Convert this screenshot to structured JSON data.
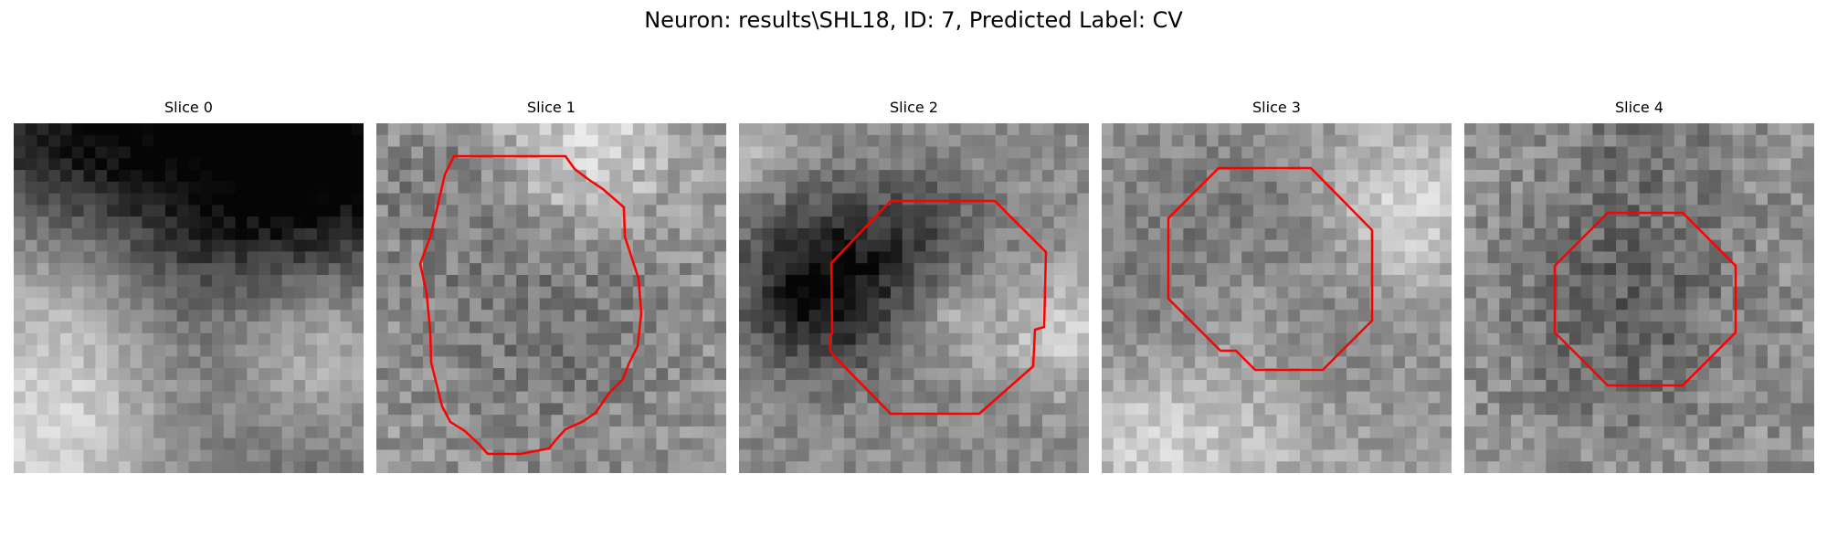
{
  "title": "Neuron: results\\SHL18, ID: 7, Predicted Label: CV",
  "contour_color": "#ff0000",
  "slices": [
    {
      "label": "Slice 0",
      "has_contour": false,
      "tone": {
        "base": 0.42,
        "noise": 0.16,
        "blobs": [
          [
            0.55,
            0.02,
            0.4,
            -0.4
          ],
          [
            0.9,
            0.12,
            0.25,
            -0.25
          ],
          [
            0.12,
            0.12,
            0.22,
            -0.18
          ],
          [
            0.12,
            0.4,
            0.22,
            0.3
          ],
          [
            0.1,
            0.9,
            0.26,
            0.42
          ],
          [
            0.88,
            0.62,
            0.2,
            0.35
          ],
          [
            0.5,
            0.5,
            0.2,
            0.05
          ]
        ]
      }
    },
    {
      "label": "Slice 1",
      "has_contour": true,
      "tone": {
        "base": 0.6,
        "noise": 0.26,
        "blobs": [
          [
            0.5,
            0.55,
            0.28,
            -0.15
          ],
          [
            0.6,
            0.06,
            0.18,
            0.25
          ],
          [
            0.15,
            0.2,
            0.15,
            -0.1
          ]
        ]
      }
    },
    {
      "label": "Slice 2",
      "has_contour": true,
      "tone": {
        "base": 0.55,
        "noise": 0.2,
        "blobs": [
          [
            0.25,
            0.45,
            0.17,
            -0.55
          ],
          [
            0.55,
            0.3,
            0.12,
            -0.2
          ],
          [
            0.6,
            0.55,
            0.09,
            0.15
          ],
          [
            0.92,
            0.6,
            0.12,
            0.25
          ],
          [
            0.05,
            0.1,
            0.1,
            0.15
          ]
        ]
      }
    },
    {
      "label": "Slice 3",
      "has_contour": true,
      "tone": {
        "base": 0.6,
        "noise": 0.2,
        "blobs": [
          [
            0.4,
            0.5,
            0.3,
            -0.22
          ],
          [
            0.42,
            0.5,
            0.14,
            0.16
          ],
          [
            0.85,
            0.25,
            0.16,
            0.28
          ],
          [
            0.4,
            0.88,
            0.22,
            0.2
          ],
          [
            0.12,
            0.9,
            0.15,
            0.18
          ]
        ]
      }
    },
    {
      "label": "Slice 4",
      "has_contour": true,
      "tone": {
        "base": 0.58,
        "noise": 0.26,
        "blobs": [
          [
            0.45,
            0.55,
            0.22,
            -0.2
          ],
          [
            0.5,
            0.1,
            0.2,
            -0.12
          ]
        ]
      }
    }
  ]
}
